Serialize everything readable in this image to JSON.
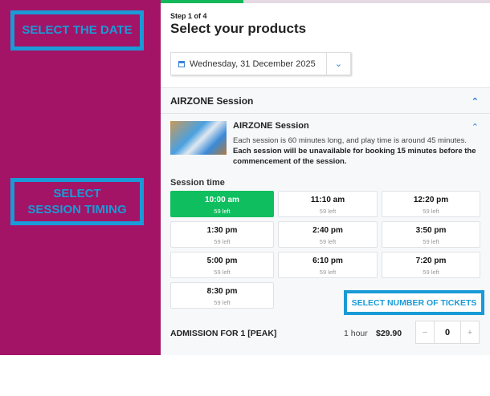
{
  "callouts": {
    "date": "SELECT THE DATE",
    "session": "SELECT SESSION TIMING",
    "tickets": "SELECT NUMBER OF TICKETS"
  },
  "progress": {
    "percent": 25,
    "color": "#14b85a"
  },
  "header": {
    "step": "Step 1 of 4",
    "title": "Select your products"
  },
  "date_picker": {
    "value": "Wednesday, 31 December 2025",
    "icon": "calendar-icon"
  },
  "section": {
    "title": "AIRZONE Session"
  },
  "product": {
    "title": "AIRZONE Session",
    "desc_plain": "Each session is 60 minutes long, and play time is around 45 minutes.",
    "desc_bold": "Each session will be unavailable for booking 15 minutes before the commencement of the session."
  },
  "session_label": "Session time",
  "slots": [
    {
      "time": "10:00 am",
      "left": "59 left",
      "selected": true
    },
    {
      "time": "11:10 am",
      "left": "59 left"
    },
    {
      "time": "12:20 pm",
      "left": "59 left"
    },
    {
      "time": "1:30 pm",
      "left": "59 left"
    },
    {
      "time": "2:40 pm",
      "left": "59 left"
    },
    {
      "time": "3:50 pm",
      "left": "59 left"
    },
    {
      "time": "5:00 pm",
      "left": "59 left"
    },
    {
      "time": "6:10 pm",
      "left": "59 left"
    },
    {
      "time": "7:20 pm",
      "left": "59 left"
    },
    {
      "time": "8:30 pm",
      "left": "59 left"
    }
  ],
  "ticket": {
    "name": "ADMISSION FOR 1 [PEAK]",
    "duration": "1 hour",
    "price": "$29.90",
    "quantity": "0",
    "minus": "−",
    "plus": "+"
  },
  "colors": {
    "brand": "#a31466",
    "callout": "#1a9ad6",
    "selected": "#0fbf5f"
  }
}
